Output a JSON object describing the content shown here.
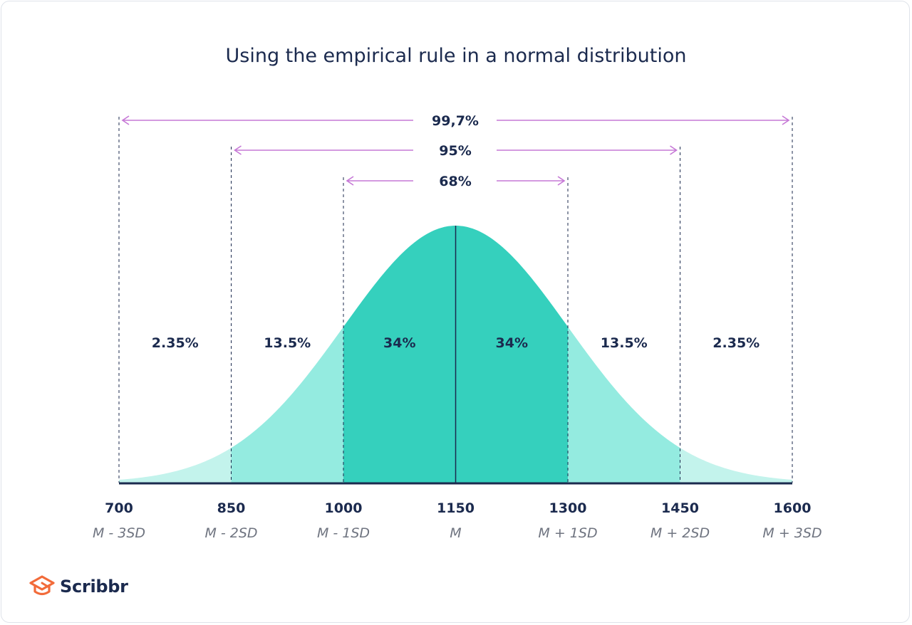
{
  "brand": {
    "name": "Scribbr",
    "color": "#f26b3a"
  },
  "chart_data": {
    "type": "area",
    "title": "Using the empirical rule in a normal distribution",
    "distribution": "normal",
    "mean": 1150,
    "sd": 150,
    "xlim": [
      700,
      1600
    ],
    "x_ticks": [
      {
        "value": 700,
        "label": "700",
        "sublabel": "M - 3SD"
      },
      {
        "value": 850,
        "label": "850",
        "sublabel": "M - 2SD"
      },
      {
        "value": 1000,
        "label": "1000",
        "sublabel": "M - 1SD"
      },
      {
        "value": 1150,
        "label": "1150",
        "sublabel": "M"
      },
      {
        "value": 1300,
        "label": "1300",
        "sublabel": "M + 1SD"
      },
      {
        "value": 1450,
        "label": "1450",
        "sublabel": "M + 2SD"
      },
      {
        "value": 1600,
        "label": "1600",
        "sublabel": "M + 3SD"
      }
    ],
    "segments": [
      {
        "from": 700,
        "to": 850,
        "label": "2.35%",
        "color": "#c3f3ec"
      },
      {
        "from": 850,
        "to": 1000,
        "label": "13.5%",
        "color": "#94ebe0"
      },
      {
        "from": 1000,
        "to": 1150,
        "label": "34%",
        "color": "#35d0bd"
      },
      {
        "from": 1150,
        "to": 1300,
        "label": "34%",
        "color": "#35d0bd"
      },
      {
        "from": 1300,
        "to": 1450,
        "label": "13.5%",
        "color": "#94ebe0"
      },
      {
        "from": 1450,
        "to": 1600,
        "label": "2.35%",
        "color": "#c3f3ec"
      }
    ],
    "ranges": [
      {
        "from": 700,
        "to": 1600,
        "label": "99,7%"
      },
      {
        "from": 850,
        "to": 1450,
        "label": "95%"
      },
      {
        "from": 1000,
        "to": 1300,
        "label": "68%"
      }
    ],
    "colors": {
      "arrow": "#c678d6",
      "axis": "#1b2a4e",
      "text": "#1b2a4e",
      "sublabel": "#6f7480",
      "mean_line": "#1b2a4e"
    }
  }
}
